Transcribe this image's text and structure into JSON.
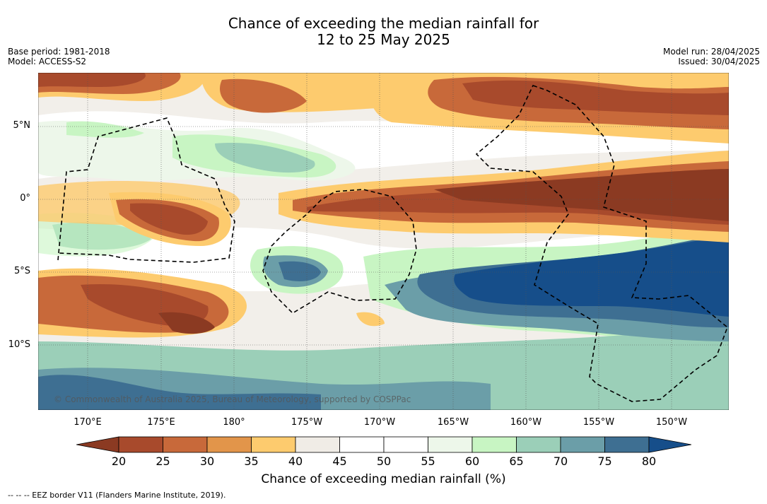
{
  "header": {
    "title_line1": "Chance of exceeding the median rainfall for",
    "title_line2": "12 to 25 May 2025",
    "base_period": "Base period: 1981-2018",
    "model": "Model: ACCESS-S2",
    "model_run": "Model run: 28/04/2025",
    "issued": "Issued: 30/04/2025"
  },
  "map": {
    "lat_labels": [
      "5°N",
      "0°",
      "5°S",
      "10°S"
    ],
    "lon_labels": [
      "170°E",
      "175°E",
      "180°",
      "175°W",
      "170°W",
      "165°W",
      "160°W",
      "155°W",
      "150°W"
    ],
    "copyright": "© Commonwealth of Australia 2025, Bureau of Meteorology, supported by COSPPac"
  },
  "colorbar": {
    "ticks": [
      "20",
      "25",
      "30",
      "35",
      "40",
      "45",
      "50",
      "55",
      "60",
      "65",
      "70",
      "75",
      "80"
    ],
    "colors": [
      "#8b3a22",
      "#a84a2c",
      "#c8693a",
      "#e2954a",
      "#fdcb6e",
      "#f0ece6",
      "#ffffff",
      "#ffffff",
      "#edf7ea",
      "#c8f5c3",
      "#9bcfb8",
      "#6b9ea8",
      "#3e6f92",
      "#164e8a"
    ],
    "label": "Chance of exceeding median rainfall (%)"
  },
  "footnote": "--  --  -- EEZ border V11 (Flanders Marine Institute, 2019)."
}
